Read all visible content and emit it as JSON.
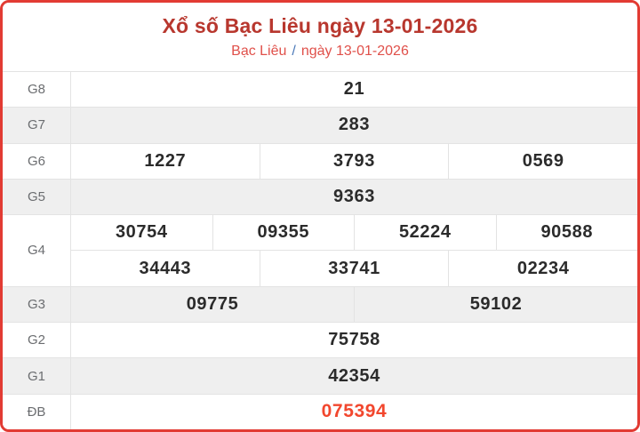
{
  "header": {
    "title": "Xổ số Bạc Liêu ngày 13-01-2026",
    "breadcrumb": {
      "region": "Bạc Liêu",
      "separator": "/",
      "date": "ngày 13-01-2026"
    }
  },
  "colors": {
    "border_red": "#e23b33",
    "title_red": "#b8372e",
    "subtitle_red": "#e0504a",
    "separator_blue": "#4a78b8",
    "special_red": "#f2472e",
    "row_alt_bg": "#efefef",
    "cell_border": "#e3e3e3",
    "label_gray": "#6b6d70",
    "value_dark": "#2b2b2b"
  },
  "table": {
    "rows": [
      {
        "label": "G8",
        "shaded": false,
        "special": false,
        "cells": [
          [
            "21"
          ]
        ]
      },
      {
        "label": "G7",
        "shaded": true,
        "special": false,
        "cells": [
          [
            "283"
          ]
        ]
      },
      {
        "label": "G6",
        "shaded": false,
        "special": false,
        "cells": [
          [
            "1227",
            "3793",
            "0569"
          ]
        ]
      },
      {
        "label": "G5",
        "shaded": true,
        "special": false,
        "cells": [
          [
            "9363"
          ]
        ]
      },
      {
        "label": "G4",
        "shaded": false,
        "special": false,
        "cells": [
          [
            "30754",
            "09355",
            "52224",
            "90588"
          ],
          [
            "34443",
            "33741",
            "02234"
          ]
        ]
      },
      {
        "label": "G3",
        "shaded": true,
        "special": false,
        "cells": [
          [
            "09775",
            "59102"
          ]
        ]
      },
      {
        "label": "G2",
        "shaded": false,
        "special": false,
        "cells": [
          [
            "75758"
          ]
        ]
      },
      {
        "label": "G1",
        "shaded": true,
        "special": false,
        "cells": [
          [
            "42354"
          ]
        ]
      },
      {
        "label": "ĐB",
        "shaded": false,
        "special": true,
        "cells": [
          [
            "075394"
          ]
        ]
      }
    ]
  }
}
